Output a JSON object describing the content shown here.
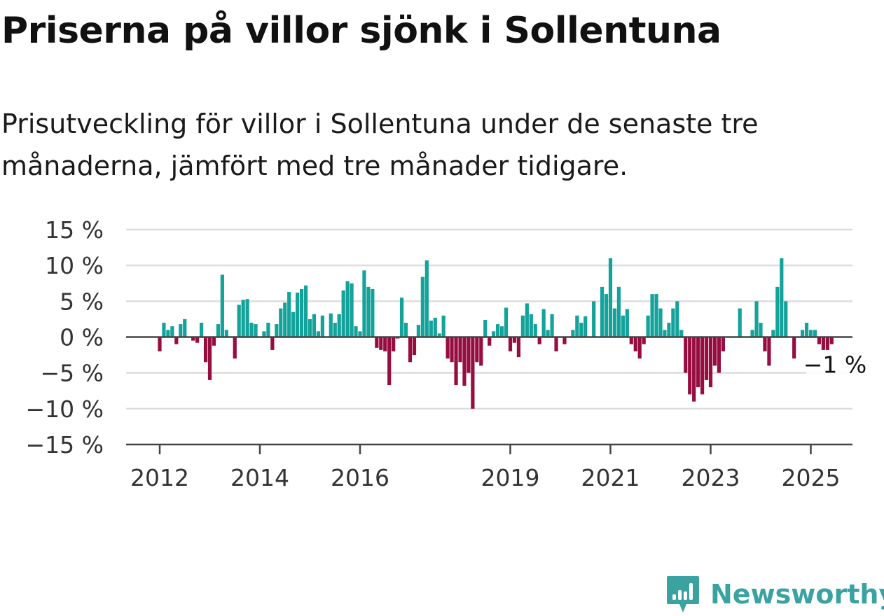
{
  "title": "Priserna på villor sjönk i Sollentuna",
  "subtitle": "Prisutveckling för villor i Sollentuna under de senaste tre månaderna, jämfört med tre månader tidigare.",
  "brand": {
    "name": "Newsworthy",
    "color": "#3aa3a1",
    "logo_icon": "newsworthy-bar-chart-logo-icon"
  },
  "chart_data": {
    "type": "bar",
    "title": "Priserna på villor sjönk i Sollentuna",
    "subtitle": "Prisutveckling för villor i Sollentuna under de senaste tre månaderna, jämfört med tre månader tidigare.",
    "xlabel": "",
    "ylabel": "",
    "x_start": "2012-01",
    "frequency": "monthly",
    "x_ticks": [
      {
        "label": "2012",
        "year": 2012
      },
      {
        "label": "2014",
        "year": 2014
      },
      {
        "label": "2016",
        "year": 2016
      },
      {
        "label": "2019",
        "year": 2019
      },
      {
        "label": "2021",
        "year": 2021
      },
      {
        "label": "2023",
        "year": 2023
      },
      {
        "label": "2025",
        "year": 2025
      }
    ],
    "y_ticks": [
      {
        "value": 15,
        "label": "15 %"
      },
      {
        "value": 10,
        "label": "10 %"
      },
      {
        "value": 5,
        "label": "5 %"
      },
      {
        "value": 0,
        "label": "0 %"
      },
      {
        "value": -5,
        "label": "−5 %"
      },
      {
        "value": -10,
        "label": "−10 %"
      },
      {
        "value": -15,
        "label": "−15 %"
      }
    ],
    "ylim": [
      -15,
      15
    ],
    "grid": true,
    "colors": {
      "positive": "#13a39b",
      "negative": "#960d40",
      "grid": "#dddddd",
      "axis": "#444444"
    },
    "annotation": {
      "label": "−1 %"
    },
    "values": [
      -2,
      2,
      1,
      1.5,
      -1,
      1.8,
      2.5,
      0,
      -0.5,
      -0.8,
      2,
      -3.5,
      -6,
      -1.2,
      1.8,
      8.7,
      1,
      0,
      -3,
      4.5,
      5.2,
      5.3,
      2,
      1.8,
      0,
      0.8,
      2,
      -1.8,
      1.8,
      4,
      4.8,
      6.3,
      3.5,
      6.2,
      6.7,
      7.2,
      2.5,
      3.2,
      0.8,
      3,
      0,
      3.3,
      2,
      3.2,
      6.5,
      7.8,
      7.5,
      1.5,
      0.8,
      9.3,
      7,
      6.7,
      -1.5,
      -1.8,
      -2,
      -6.7,
      -2,
      -0.2,
      5.5,
      2,
      -3.5,
      -2.5,
      1.7,
      8.4,
      10.7,
      2.3,
      2.7,
      0.5,
      3,
      -3,
      -3.5,
      -6.7,
      -3.5,
      -6.8,
      -5,
      -10,
      -3.5,
      -4,
      2.4,
      -1.2,
      0.8,
      1.8,
      1.5,
      4.1,
      -2,
      -0.8,
      -2.8,
      3,
      4.7,
      3.2,
      1.8,
      -1,
      3.9,
      1,
      3.2,
      -2,
      0,
      -1,
      0,
      1,
      3,
      2,
      2.9,
      0,
      5,
      0,
      7,
      6,
      11,
      4,
      7,
      3,
      3.9,
      -1,
      -2,
      -3,
      -1,
      3,
      6,
      6,
      4,
      1,
      2,
      4,
      5,
      1,
      -5,
      -8,
      -9,
      -7,
      -8,
      -6,
      -7,
      -4,
      -5,
      -2,
      0,
      0,
      0,
      4,
      0,
      0,
      1,
      5,
      2,
      -2,
      -4,
      1,
      7,
      11,
      5,
      0,
      -3,
      0,
      1,
      2,
      1,
      1,
      -1,
      -1.8,
      -1.8,
      -1
    ]
  }
}
